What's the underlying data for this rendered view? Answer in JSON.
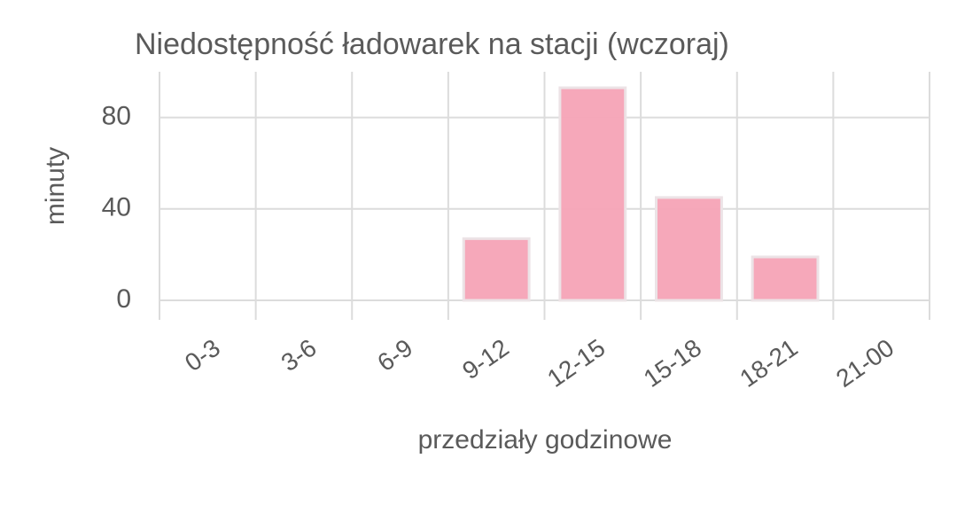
{
  "chart_data": {
    "type": "bar",
    "title": "Niedostępność ładowarek na stacji (wczoraj)",
    "x_label": "przedziały godzinowe",
    "y_label": "minuty",
    "categories": [
      "0-3",
      "3-6",
      "6-9",
      "9-12",
      "12-15",
      "15-18",
      "18-21",
      "21-00"
    ],
    "values": [
      0,
      0,
      0,
      27,
      93,
      45,
      19,
      0
    ],
    "color": "#f5a3b6",
    "ylim": [
      0,
      100
    ],
    "yticks": [
      0,
      40,
      80
    ],
    "grid": true
  }
}
